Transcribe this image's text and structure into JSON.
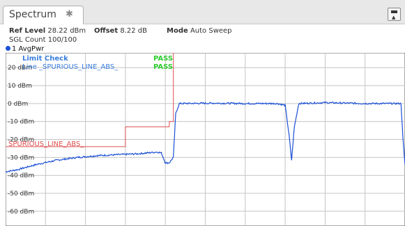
{
  "tab": {
    "label": "Spectrum",
    "icon": "pin-icon"
  },
  "info": {
    "ref_level_label": "Ref Level",
    "ref_level_value": "28.22 dBm",
    "offset_label": "Offset",
    "offset_value": "8.22 dB",
    "mode_label": "Mode",
    "mode_value": "Auto Sweep",
    "sgl_count": "SGL Count 100/100"
  },
  "trace": {
    "label": "1 AvgPwr",
    "color": "#1a4fd6"
  },
  "limit_check": {
    "title": "Limit Check",
    "line_label": "Line _SPURIOUS_LINE_ABS_",
    "result": "PASS",
    "line_result": "PASS"
  },
  "limit_line": {
    "name": "SPURIOUS_LINE_ABS_",
    "color": "#e05050"
  },
  "chart_data": {
    "type": "line",
    "y_tick_labels": [
      "20 dBm",
      "10 dBm",
      "0 dBm",
      "-10 dBm",
      "-20 dBm",
      "-30 dBm",
      "-40 dBm",
      "-50 dBm",
      "-60 dBm"
    ],
    "y_tick_values": [
      20,
      10,
      0,
      -10,
      -20,
      -30,
      -40,
      -50,
      -60
    ],
    "ylim": [
      -68.2,
      28.22
    ],
    "xlim": [
      0,
      100
    ],
    "grid": true,
    "limit_line": {
      "x": [
        0,
        30,
        30,
        41,
        41,
        42,
        42,
        100
      ],
      "y": [
        -24,
        -24,
        -13,
        -13,
        -10,
        -10,
        30,
        30
      ]
    },
    "trace": {
      "x": [
        0,
        3,
        8,
        13,
        18,
        23,
        28,
        33,
        38,
        39,
        40,
        41,
        42,
        42.6,
        43.5,
        52,
        60,
        68,
        70,
        71,
        71.6,
        72.3,
        73.4,
        80,
        90,
        99,
        99.5,
        100
      ],
      "y": [
        -38,
        -36.8,
        -33.8,
        -31.5,
        -30,
        -29,
        -28.5,
        -28,
        -27,
        -27.5,
        -33,
        -33,
        -30,
        -5.5,
        0,
        0.2,
        0,
        0,
        -1,
        -18,
        -31.5,
        -13,
        0,
        0.5,
        0,
        0,
        -20,
        -34
      ]
    }
  }
}
